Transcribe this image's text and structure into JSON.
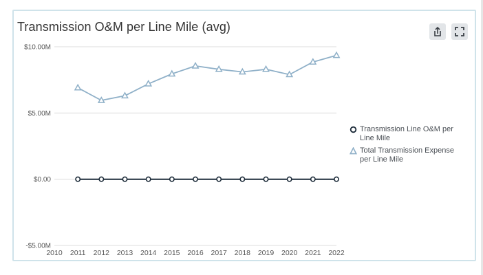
{
  "chart_data": {
    "type": "line",
    "title": "Transmission O&M per Line Mile (avg)",
    "xlabel": "",
    "ylabel": "",
    "x": [
      2010,
      2011,
      2012,
      2013,
      2014,
      2015,
      2016,
      2017,
      2018,
      2019,
      2020,
      2021,
      2022
    ],
    "xlim": [
      2010,
      2022
    ],
    "ylim": [
      -5000000,
      10000000
    ],
    "yticks": [
      -5000000,
      0,
      5000000,
      10000000
    ],
    "ytick_labels": [
      "-$5.00M",
      "$0.00",
      "$5.00M",
      "$10.00M"
    ],
    "grid": true,
    "legend_position": "right",
    "series": [
      {
        "name": "Transmission Line O&M per Line Mile",
        "marker": "circle",
        "color": "#1c2b39",
        "x": [
          2011,
          2012,
          2013,
          2014,
          2015,
          2016,
          2017,
          2018,
          2019,
          2020,
          2021,
          2022
        ],
        "values": [
          0,
          0,
          0,
          0,
          0,
          0,
          0,
          0,
          0,
          0,
          0,
          0
        ]
      },
      {
        "name": "Total Transmission Expense per Line Mile",
        "marker": "triangle",
        "color": "#8fb0c8",
        "x": [
          2011,
          2012,
          2013,
          2014,
          2015,
          2016,
          2017,
          2018,
          2019,
          2020,
          2021,
          2022
        ],
        "values": [
          6900000,
          5950000,
          6300000,
          7200000,
          7950000,
          8550000,
          8300000,
          8100000,
          8300000,
          7900000,
          8850000,
          9350000
        ]
      }
    ]
  },
  "toolbar": {
    "export_icon": "share-export-icon",
    "fullscreen_icon": "fullscreen-icon"
  },
  "colors": {
    "card_border": "#cfe3ea",
    "grid": "#dcdcdc",
    "axis_text": "#555555"
  }
}
